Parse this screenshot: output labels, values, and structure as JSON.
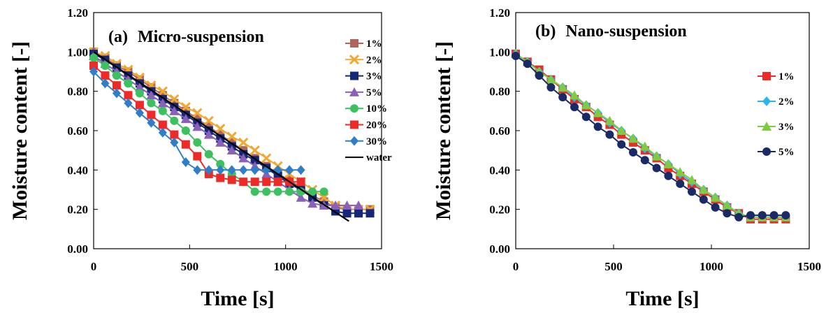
{
  "chart_data": [
    {
      "type": "line",
      "panel_label": "(a)",
      "title": "Micro-suspension",
      "xlabel": "Time [s]",
      "ylabel": "Moisture content [-]",
      "xlim": [
        0,
        1500
      ],
      "ylim": [
        0,
        1.2
      ],
      "xticks": [
        0,
        500,
        1000,
        1500
      ],
      "yticks": [
        0,
        0.2,
        0.4,
        0.6,
        0.8,
        1.0,
        1.2
      ],
      "xtick_labels": [
        "0",
        "500",
        "1000",
        "1500"
      ],
      "ytick_labels": [
        "0.00",
        "0.20",
        "0.40",
        "0.60",
        "0.80",
        "1.00",
        "1.20"
      ],
      "grid": false,
      "legend_position": "right",
      "series": [
        {
          "name": "1%",
          "color": "#b0645c",
          "marker": "square",
          "x": [
            0,
            60,
            120,
            180,
            240,
            300,
            360,
            420,
            480,
            540,
            600,
            660,
            720,
            780,
            840,
            900,
            960,
            1020,
            1080,
            1140,
            1200,
            1260,
            1320,
            1380,
            1440
          ],
          "y": [
            1.0,
            0.97,
            0.93,
            0.9,
            0.86,
            0.82,
            0.78,
            0.74,
            0.7,
            0.66,
            0.62,
            0.58,
            0.54,
            0.5,
            0.46,
            0.42,
            0.38,
            0.35,
            0.31,
            0.27,
            0.24,
            0.21,
            0.2,
            0.2,
            0.2
          ]
        },
        {
          "name": "2%",
          "color": "#f0a830",
          "marker": "x",
          "x": [
            0,
            60,
            120,
            180,
            240,
            300,
            360,
            420,
            480,
            540,
            600,
            660,
            720,
            780,
            840,
            900,
            960,
            1020,
            1080,
            1140,
            1200,
            1260,
            1320,
            1380,
            1440
          ],
          "y": [
            1.0,
            0.98,
            0.94,
            0.91,
            0.87,
            0.83,
            0.8,
            0.76,
            0.72,
            0.69,
            0.65,
            0.61,
            0.57,
            0.54,
            0.5,
            0.46,
            0.42,
            0.38,
            0.34,
            0.3,
            0.26,
            0.22,
            0.2,
            0.2,
            0.2
          ]
        },
        {
          "name": "3%",
          "color": "#14287a",
          "marker": "square",
          "x": [
            0,
            60,
            120,
            180,
            240,
            300,
            360,
            420,
            480,
            540,
            600,
            660,
            720,
            780,
            840,
            900,
            960,
            1020,
            1080,
            1140,
            1200,
            1260,
            1320,
            1380,
            1440
          ],
          "y": [
            0.99,
            0.96,
            0.92,
            0.88,
            0.84,
            0.8,
            0.76,
            0.72,
            0.68,
            0.64,
            0.6,
            0.56,
            0.52,
            0.48,
            0.45,
            0.41,
            0.37,
            0.33,
            0.3,
            0.26,
            0.22,
            0.19,
            0.18,
            0.18,
            0.18
          ]
        },
        {
          "name": "5%",
          "color": "#8a60b8",
          "marker": "triangle",
          "x": [
            0,
            60,
            120,
            180,
            240,
            300,
            360,
            420,
            480,
            540,
            600,
            660,
            720,
            780,
            840,
            900,
            960,
            1020,
            1080,
            1140,
            1200,
            1260,
            1320,
            1380
          ],
          "y": [
            0.98,
            0.94,
            0.9,
            0.86,
            0.82,
            0.78,
            0.74,
            0.7,
            0.66,
            0.62,
            0.58,
            0.54,
            0.5,
            0.46,
            0.42,
            0.38,
            0.34,
            0.3,
            0.26,
            0.23,
            0.22,
            0.22,
            0.22,
            0.22
          ]
        },
        {
          "name": "10%",
          "color": "#3cc060",
          "marker": "circle",
          "x": [
            0,
            60,
            120,
            180,
            240,
            300,
            360,
            420,
            480,
            540,
            600,
            660,
            720,
            780,
            840,
            900,
            960,
            1020,
            1080,
            1140,
            1200
          ],
          "y": [
            0.97,
            0.93,
            0.88,
            0.84,
            0.79,
            0.74,
            0.7,
            0.65,
            0.6,
            0.54,
            0.48,
            0.43,
            0.38,
            0.34,
            0.29,
            0.29,
            0.29,
            0.29,
            0.29,
            0.29,
            0.29
          ]
        },
        {
          "name": "20%",
          "color": "#ee2a28",
          "marker": "square",
          "x": [
            0,
            60,
            120,
            180,
            240,
            300,
            360,
            420,
            480,
            540,
            600,
            660,
            720,
            780,
            840,
            900,
            960,
            1020,
            1080
          ],
          "y": [
            0.93,
            0.88,
            0.83,
            0.78,
            0.73,
            0.68,
            0.63,
            0.58,
            0.53,
            0.47,
            0.38,
            0.36,
            0.35,
            0.34,
            0.34,
            0.34,
            0.34,
            0.34,
            0.34
          ]
        },
        {
          "name": "30%",
          "color": "#2f7fc8",
          "marker": "diamond",
          "x": [
            0,
            60,
            120,
            180,
            240,
            300,
            360,
            420,
            480,
            540,
            600,
            660,
            720,
            780,
            840,
            900,
            960,
            1020,
            1080
          ],
          "y": [
            0.9,
            0.84,
            0.79,
            0.74,
            0.69,
            0.64,
            0.59,
            0.54,
            0.44,
            0.4,
            0.4,
            0.4,
            0.4,
            0.4,
            0.4,
            0.4,
            0.4,
            0.4,
            0.4
          ]
        },
        {
          "name": "water",
          "color": "#000000",
          "marker": "none",
          "x": [
            0,
            1330
          ],
          "y": [
            1.0,
            0.14
          ]
        }
      ]
    },
    {
      "type": "line",
      "panel_label": "(b)",
      "title": "Nano-suspension",
      "xlabel": "Time [s]",
      "ylabel": "Moisture content [-]",
      "xlim": [
        0,
        1500
      ],
      "ylim": [
        0,
        1.2
      ],
      "xticks": [
        0,
        500,
        1000,
        1500
      ],
      "yticks": [
        0,
        0.2,
        0.4,
        0.6,
        0.8,
        1.0,
        1.2
      ],
      "xtick_labels": [
        "0",
        "500",
        "1000",
        "1500"
      ],
      "ytick_labels": [
        "0.00",
        "0.20",
        "0.40",
        "0.60",
        "0.80",
        "1.00",
        "1.20"
      ],
      "grid": false,
      "legend_position": "right",
      "series": [
        {
          "name": "1%",
          "color": "#ee2a28",
          "marker": "square",
          "x": [
            0,
            60,
            120,
            180,
            240,
            300,
            360,
            420,
            480,
            540,
            600,
            660,
            720,
            780,
            840,
            900,
            960,
            1020,
            1080,
            1140,
            1200,
            1260,
            1320,
            1380
          ],
          "y": [
            0.99,
            0.95,
            0.91,
            0.86,
            0.81,
            0.76,
            0.72,
            0.67,
            0.63,
            0.58,
            0.54,
            0.5,
            0.46,
            0.41,
            0.37,
            0.33,
            0.29,
            0.25,
            0.21,
            0.18,
            0.15,
            0.15,
            0.15,
            0.15
          ]
        },
        {
          "name": "2%",
          "color": "#29b6e8",
          "marker": "diamond",
          "x": [
            0,
            60,
            120,
            180,
            240,
            300,
            360,
            420,
            480,
            540,
            600,
            660,
            720,
            780,
            840,
            900,
            960,
            1020,
            1080,
            1140,
            1200,
            1260,
            1320,
            1380
          ],
          "y": [
            0.99,
            0.95,
            0.9,
            0.86,
            0.82,
            0.77,
            0.73,
            0.69,
            0.64,
            0.6,
            0.56,
            0.51,
            0.47,
            0.43,
            0.38,
            0.34,
            0.3,
            0.26,
            0.22,
            0.18,
            0.16,
            0.16,
            0.16,
            0.16
          ]
        },
        {
          "name": "3%",
          "color": "#80cc40",
          "marker": "triangle",
          "x": [
            0,
            60,
            120,
            180,
            240,
            300,
            360,
            420,
            480,
            540,
            600,
            660,
            720,
            780,
            840,
            900,
            960,
            1020,
            1080,
            1140,
            1200,
            1260,
            1320,
            1380
          ],
          "y": [
            0.99,
            0.95,
            0.9,
            0.86,
            0.82,
            0.78,
            0.73,
            0.69,
            0.65,
            0.6,
            0.56,
            0.52,
            0.47,
            0.43,
            0.39,
            0.35,
            0.3,
            0.26,
            0.22,
            0.18,
            0.16,
            0.16,
            0.16,
            0.16
          ]
        },
        {
          "name": "5%",
          "color": "#1a2a66",
          "marker": "circle",
          "x": [
            0,
            60,
            120,
            180,
            240,
            300,
            360,
            420,
            480,
            540,
            600,
            660,
            720,
            780,
            840,
            900,
            960,
            1020,
            1080,
            1140,
            1200,
            1260,
            1320,
            1380
          ],
          "y": [
            0.98,
            0.94,
            0.88,
            0.82,
            0.77,
            0.72,
            0.67,
            0.62,
            0.58,
            0.53,
            0.49,
            0.45,
            0.41,
            0.37,
            0.33,
            0.29,
            0.25,
            0.21,
            0.18,
            0.16,
            0.17,
            0.17,
            0.17,
            0.17
          ]
        }
      ]
    }
  ]
}
